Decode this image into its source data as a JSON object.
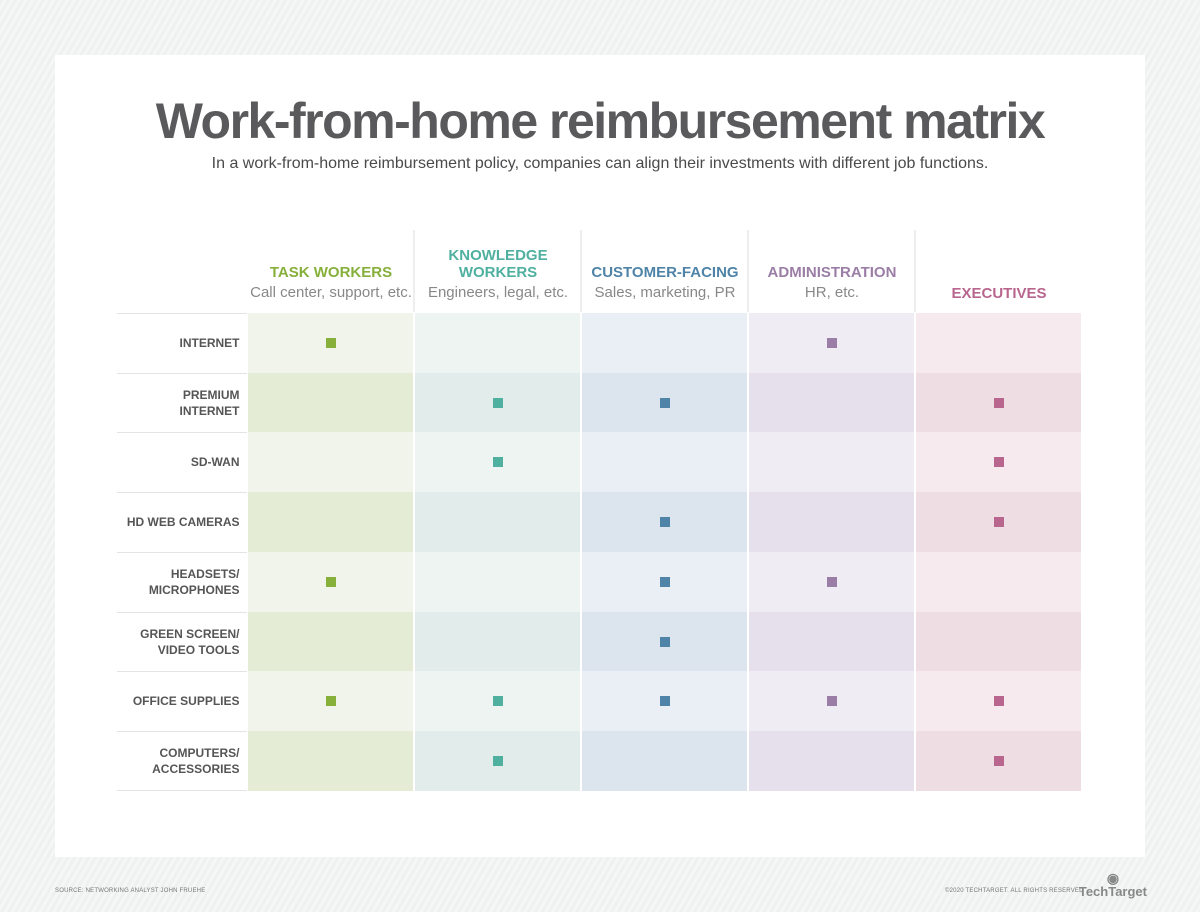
{
  "title": "Work-from-home reimbursement matrix",
  "subtitle": "In a work-from-home reimbursement policy, companies can align their investments with different job functions.",
  "columns": [
    {
      "title": "TASK WORKERS",
      "desc": "Call center, support, etc.",
      "color": "#86b03a",
      "bg": [
        "#f1f4ea",
        "#e4ecd6"
      ]
    },
    {
      "title": "KNOWLEDGE WORKERS",
      "desc": "Engineers, legal, etc.",
      "color": "#4fb0a0",
      "bg": [
        "#eef4f2",
        "#e2ecea"
      ]
    },
    {
      "title": "CUSTOMER-FACING",
      "desc": "Sales, marketing, PR",
      "color": "#4f84a8",
      "bg": [
        "#eaeef5",
        "#dce5ee"
      ]
    },
    {
      "title": "ADMINISTRATION",
      "desc": "HR, etc.",
      "color": "#9b7ea6",
      "bg": [
        "#f0ecf3",
        "#e6e0ec"
      ]
    },
    {
      "title": "EXECUTIVES",
      "desc": "",
      "color": "#b9668f",
      "bg": [
        "#f6eaee",
        "#eedee4"
      ]
    }
  ],
  "rows": [
    {
      "label": "INTERNET",
      "marks": [
        1,
        0,
        0,
        1,
        0
      ]
    },
    {
      "label": "PREMIUM INTERNET",
      "marks": [
        0,
        1,
        1,
        0,
        1
      ]
    },
    {
      "label": "SD-WAN",
      "marks": [
        0,
        1,
        0,
        0,
        1
      ]
    },
    {
      "label": "HD WEB CAMERAS",
      "marks": [
        0,
        0,
        1,
        0,
        1
      ]
    },
    {
      "label": "HEADSETS/ MICROPHONES",
      "marks": [
        1,
        0,
        1,
        1,
        0
      ]
    },
    {
      "label": "GREEN SCREEN/ VIDEO TOOLS",
      "marks": [
        0,
        0,
        1,
        0,
        0
      ]
    },
    {
      "label": "OFFICE SUPPLIES",
      "marks": [
        1,
        1,
        1,
        1,
        1
      ]
    },
    {
      "label": "COMPUTERS/ ACCESSORIES",
      "marks": [
        0,
        1,
        0,
        0,
        1
      ]
    }
  ],
  "footer": {
    "source": "SOURCE: NETWORKING ANALYST JOHN FRUEHE",
    "copyright": "©2020 TECHTARGET. ALL RIGHTS RESERVED",
    "logo": "TechTarget"
  }
}
